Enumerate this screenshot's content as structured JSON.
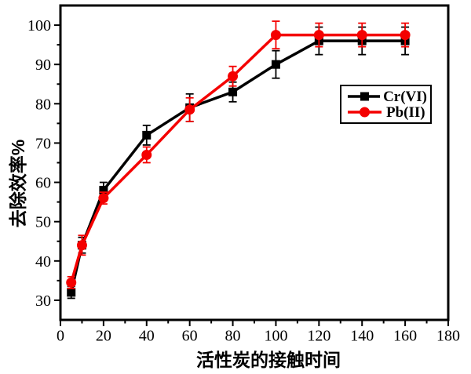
{
  "chart_data": {
    "type": "line",
    "title": "",
    "xlabel": "活性炭的接触时间",
    "ylabel": "去除效率%",
    "xlim": [
      0,
      180
    ],
    "ylim": [
      25,
      105
    ],
    "x_major_ticks": [
      0,
      20,
      40,
      60,
      80,
      100,
      120,
      140,
      160,
      180
    ],
    "x_minor_tick_step": 10,
    "y_major_ticks": [
      30,
      40,
      50,
      60,
      70,
      80,
      90,
      100
    ],
    "y_minor_tick_step": 5,
    "grid": false,
    "frame": true,
    "legend_position": "middle-right",
    "x": [
      5,
      10,
      20,
      40,
      60,
      80,
      100,
      120,
      140,
      160
    ],
    "series": [
      {
        "name": "Cr(VI)",
        "color": "#000000",
        "marker": "square",
        "values": [
          32,
          44,
          58,
          72,
          79,
          83,
          90,
          96,
          96,
          96
        ],
        "errors": [
          1.5,
          2,
          2,
          2.5,
          3.5,
          2.5,
          3.5,
          3.5,
          3.5,
          3.5
        ]
      },
      {
        "name": "Pb(II)",
        "color": "#f40000",
        "marker": "circle",
        "values": [
          34.5,
          44,
          56,
          67,
          78.5,
          87,
          97.5,
          97.5,
          97.5,
          97.5
        ],
        "errors": [
          1.5,
          2.5,
          1.5,
          2,
          3,
          2.5,
          3.5,
          3,
          3,
          3
        ]
      }
    ]
  }
}
